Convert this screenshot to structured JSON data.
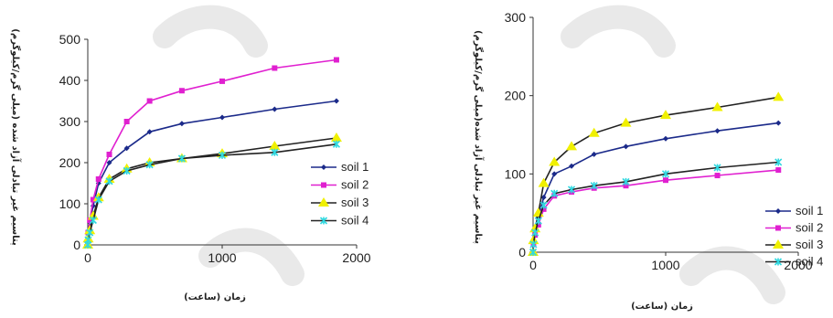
{
  "chart_data": [
    {
      "type": "line",
      "xlabel": "زمان (ساعت)",
      "ylabel": "پتاسیم غیر تبادلی آزاد شده (میلی گرم/کیلوگرم)",
      "xlim": [
        0,
        2000
      ],
      "ylim": [
        0,
        500
      ],
      "xticks": [
        "0",
        "1000",
        "2000"
      ],
      "yticks": [
        "0",
        "100",
        "200",
        "300",
        "400",
        "500"
      ],
      "legend_position": "right",
      "series": [
        {
          "name": "soil 1",
          "color": "#1b2a8a",
          "marker": "diamond",
          "x": [
            0,
            3,
            15,
            40,
            80,
            160,
            290,
            460,
            700,
            1000,
            1390,
            1850
          ],
          "y": [
            0,
            25,
            55,
            95,
            150,
            200,
            235,
            275,
            295,
            310,
            330,
            350
          ]
        },
        {
          "name": "soil 2",
          "color": "#e020d0",
          "marker": "square",
          "x": [
            0,
            3,
            15,
            40,
            80,
            160,
            290,
            460,
            700,
            1000,
            1390,
            1850
          ],
          "y": [
            0,
            30,
            60,
            110,
            160,
            220,
            300,
            350,
            375,
            398,
            430,
            450
          ]
        },
        {
          "name": "soil 3",
          "color": "#f0f000",
          "marker": "triangle",
          "x": [
            0,
            3,
            15,
            40,
            80,
            160,
            290,
            460,
            700,
            1000,
            1390,
            1850
          ],
          "y": [
            0,
            15,
            35,
            70,
            115,
            160,
            185,
            200,
            210,
            222,
            240,
            260
          ]
        },
        {
          "name": "soil 4",
          "color": "#30d8e0",
          "marker": "x",
          "x": [
            0,
            3,
            15,
            40,
            80,
            160,
            290,
            460,
            700,
            1000,
            1390,
            1850
          ],
          "y": [
            0,
            12,
            30,
            60,
            110,
            155,
            180,
            195,
            210,
            218,
            225,
            245
          ]
        }
      ]
    },
    {
      "type": "line",
      "xlabel": "زمان (ساعت)",
      "ylabel": "پتاسیم غیر تبادلی آزاد شده(میلی گرم/کیلوگرم)",
      "xlim": [
        0,
        2000
      ],
      "ylim": [
        0,
        300
      ],
      "xticks": [
        "0",
        "1000",
        "2000"
      ],
      "yticks": [
        "0",
        "100",
        "200",
        "300"
      ],
      "legend_position": "right",
      "series": [
        {
          "name": "soil 1",
          "color": "#1b2a8a",
          "marker": "diamond",
          "x": [
            0,
            3,
            15,
            40,
            80,
            160,
            290,
            460,
            700,
            1000,
            1390,
            1850
          ],
          "y": [
            0,
            15,
            30,
            45,
            70,
            100,
            110,
            125,
            135,
            145,
            155,
            165
          ]
        },
        {
          "name": "soil 2",
          "color": "#e020d0",
          "marker": "square",
          "x": [
            0,
            3,
            15,
            40,
            80,
            160,
            290,
            460,
            700,
            1000,
            1390,
            1850
          ],
          "y": [
            0,
            10,
            22,
            35,
            55,
            72,
            77,
            82,
            85,
            92,
            98,
            105
          ]
        },
        {
          "name": "soil 3",
          "color": "#f0f000",
          "marker": "triangle",
          "x": [
            0,
            3,
            15,
            40,
            80,
            160,
            290,
            460,
            700,
            1000,
            1390,
            1850
          ],
          "y": [
            0,
            15,
            30,
            50,
            88,
            115,
            135,
            152,
            165,
            175,
            185,
            198
          ]
        },
        {
          "name": "soil 4",
          "color": "#30d8e0",
          "marker": "x",
          "x": [
            0,
            3,
            15,
            40,
            80,
            160,
            290,
            460,
            700,
            1000,
            1390,
            1850
          ],
          "y": [
            0,
            10,
            25,
            40,
            60,
            75,
            80,
            85,
            90,
            100,
            108,
            115
          ]
        }
      ]
    }
  ]
}
